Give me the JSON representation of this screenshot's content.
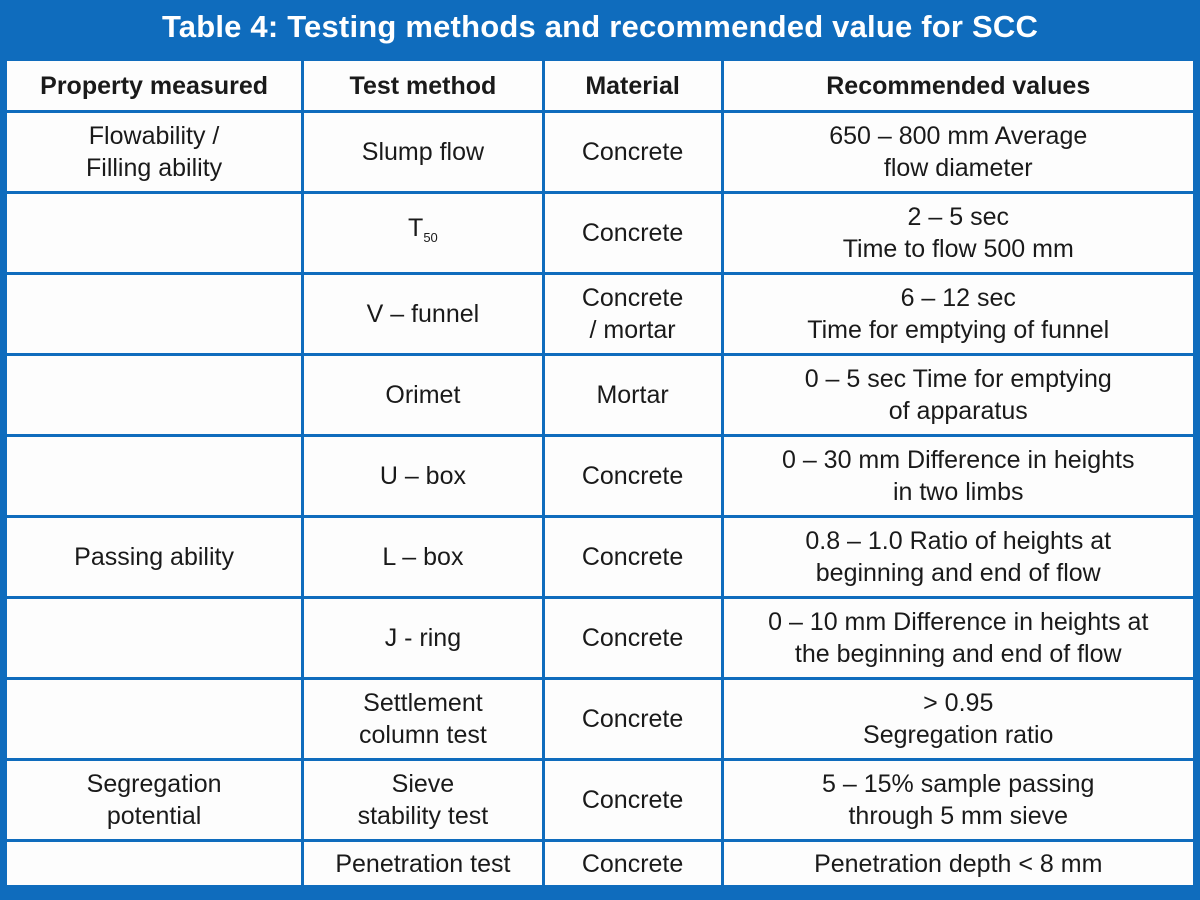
{
  "title": "Table 4: Testing methods and recommended value for SCC",
  "colors": {
    "accent": "#0f6cbd",
    "cell_bg": "#fdfdfd",
    "text": "#1a1a1a",
    "title_text": "#ffffff"
  },
  "table": {
    "headers": [
      "Property measured",
      "Test method",
      "Material",
      "Recommended values"
    ],
    "rows": [
      {
        "property": [
          "Flowability /",
          "Filling ability"
        ],
        "method": [
          "Slump flow"
        ],
        "method_sub": "",
        "material": [
          "Concrete"
        ],
        "value": [
          "650 – 800 mm Average",
          "flow diameter"
        ]
      },
      {
        "property": [],
        "method": [
          "T"
        ],
        "method_sub": "50",
        "material": [
          "Concrete"
        ],
        "value": [
          "2 – 5 sec",
          "Time to flow 500 mm"
        ]
      },
      {
        "property": [],
        "method": [
          "V – funnel"
        ],
        "method_sub": "",
        "material": [
          "Concrete",
          "/ mortar"
        ],
        "value": [
          "6 – 12 sec",
          "Time for emptying of funnel"
        ]
      },
      {
        "property": [],
        "method": [
          "Orimet"
        ],
        "method_sub": "",
        "material": [
          "Mortar"
        ],
        "value": [
          "0 – 5 sec Time for emptying",
          "of apparatus"
        ]
      },
      {
        "property": [],
        "method": [
          "U – box"
        ],
        "method_sub": "",
        "material": [
          "Concrete"
        ],
        "value": [
          "0 – 30 mm Difference in heights",
          "in two limbs"
        ]
      },
      {
        "property": [
          "Passing ability"
        ],
        "method": [
          "L – box"
        ],
        "method_sub": "",
        "material": [
          "Concrete"
        ],
        "value": [
          "0.8 – 1.0 Ratio of heights at",
          "beginning and end of flow"
        ]
      },
      {
        "property": [],
        "method": [
          "J - ring"
        ],
        "method_sub": "",
        "material": [
          "Concrete"
        ],
        "value": [
          "0 – 10 mm Difference in heights at",
          "the beginning and end of flow"
        ]
      },
      {
        "property": [],
        "method": [
          "Settlement",
          "column test"
        ],
        "method_sub": "",
        "material": [
          "Concrete"
        ],
        "value": [
          "> 0.95",
          "Segregation ratio"
        ]
      },
      {
        "property": [
          "Segregation",
          "potential"
        ],
        "method": [
          "Sieve",
          "stability test"
        ],
        "method_sub": "",
        "material": [
          "Concrete"
        ],
        "value": [
          "5 – 15% sample passing",
          "through 5 mm sieve"
        ]
      },
      {
        "property": [],
        "method": [
          "Penetration test"
        ],
        "method_sub": "",
        "material": [
          "Concrete"
        ],
        "value": [
          "Penetration depth < 8 mm"
        ]
      }
    ]
  }
}
